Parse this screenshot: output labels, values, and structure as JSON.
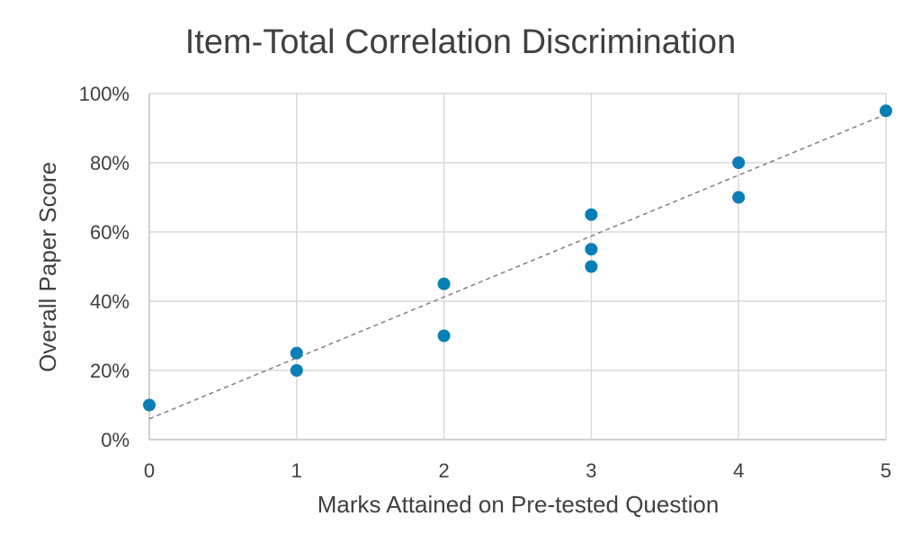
{
  "chart_data": {
    "type": "scatter",
    "title": "Item-Total Correlation Discrimination",
    "xlabel": "Marks Attained on Pre-tested Question",
    "ylabel": "Overall Paper Score",
    "xlim": [
      0,
      5
    ],
    "ylim": [
      0,
      100
    ],
    "x_ticks": [
      "0",
      "1",
      "2",
      "3",
      "4",
      "5"
    ],
    "y_ticks": [
      "0%",
      "20%",
      "40%",
      "60%",
      "80%",
      "100%"
    ],
    "grid": true,
    "legend": "none",
    "point_color": "#0a7fb5",
    "trendline": {
      "style": "dashed",
      "color": "#808080",
      "y_at_xmin": 6,
      "y_at_xmax": 94
    },
    "points": [
      {
        "x": 0,
        "y": 10
      },
      {
        "x": 1,
        "y": 25
      },
      {
        "x": 1,
        "y": 20
      },
      {
        "x": 2,
        "y": 45
      },
      {
        "x": 2,
        "y": 30
      },
      {
        "x": 3,
        "y": 65
      },
      {
        "x": 3,
        "y": 55
      },
      {
        "x": 3,
        "y": 50
      },
      {
        "x": 4,
        "y": 80
      },
      {
        "x": 4,
        "y": 70
      },
      {
        "x": 5,
        "y": 95
      }
    ]
  }
}
